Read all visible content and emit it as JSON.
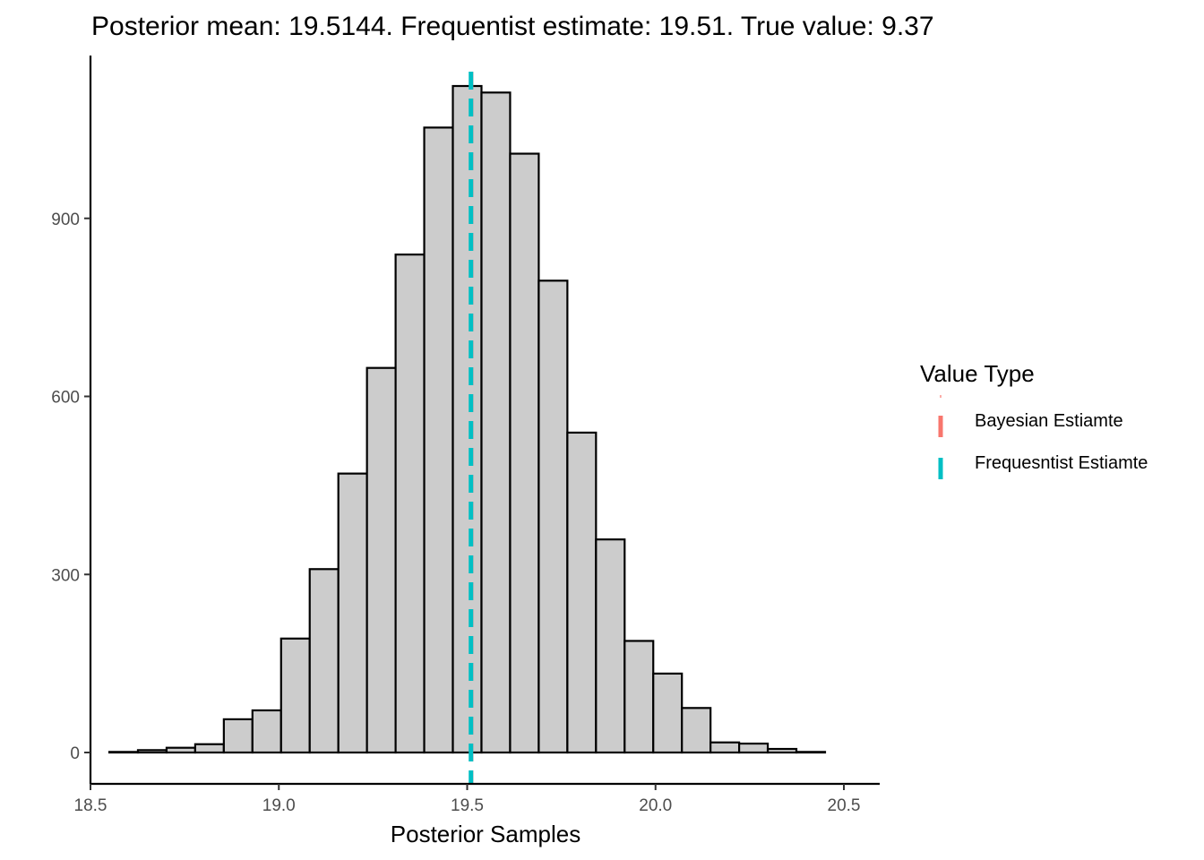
{
  "chart_data": {
    "type": "bar",
    "title": "Posterior mean: 19.5144. Frequentist estimate: 19.51. True value: 9.37",
    "xlabel": "Posterior Samples",
    "ylabel": "",
    "xlim": [
      18.5,
      20.5
    ],
    "ylim": [
      0,
      1120
    ],
    "xticks": [
      "18.5",
      "19.0",
      "19.5",
      "20.0",
      "20.5"
    ],
    "yticks": [
      "0",
      "300",
      "600",
      "900"
    ],
    "bin_edges": [
      18.55,
      18.626,
      18.702,
      18.778,
      18.854,
      18.93,
      19.006,
      19.082,
      19.158,
      19.234,
      19.31,
      19.386,
      19.462,
      19.538,
      19.614,
      19.69,
      19.766,
      19.842,
      19.918,
      19.994,
      20.07,
      20.146,
      20.222,
      20.298,
      20.374,
      20.45
    ],
    "values": [
      1,
      4,
      8,
      14,
      56,
      71,
      192,
      309,
      470,
      648,
      839,
      1053,
      1123,
      1112,
      1009,
      795,
      539,
      359,
      188,
      133,
      75,
      17,
      15,
      6,
      1
    ],
    "lines": [
      {
        "name": "Bayesian Estiamte",
        "value": 19.5144,
        "color": "#F8766D"
      },
      {
        "name": "Frequesntist Estiamte",
        "value": 19.51,
        "color": "#00BFC4"
      }
    ],
    "bar_fill": "#CCCCCC",
    "bar_stroke": "#000000",
    "grid": false,
    "legend": {
      "title": "Value Type",
      "position": "right"
    }
  }
}
